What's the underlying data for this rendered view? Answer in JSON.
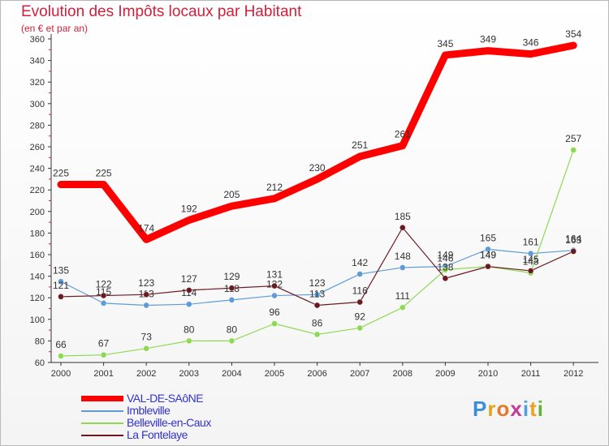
{
  "header": {
    "title": "Evolution des Impôts locaux par Habitant",
    "subtitle": "(en € et par an)"
  },
  "brand": {
    "text": "Proxiti",
    "colors": [
      "#3a8fd8",
      "#e0a51a",
      "#e8762b",
      "#c33a9a",
      "#4aa3df",
      "#f0a020",
      "#62b33a"
    ]
  },
  "chart_data": {
    "type": "line",
    "x": [
      2000,
      2001,
      2002,
      2003,
      2004,
      2005,
      2006,
      2007,
      2008,
      2009,
      2010,
      2011,
      2012
    ],
    "ylim": [
      60,
      360
    ],
    "yticks": [
      60,
      80,
      100,
      120,
      140,
      160,
      180,
      200,
      220,
      240,
      260,
      280,
      300,
      320,
      340,
      360
    ],
    "grid": false,
    "legend_position": "bottom-left",
    "series": [
      {
        "name": "VAL-DE-SAôNE",
        "color": "#ff0000",
        "values": [
          225,
          225,
          174,
          192,
          205,
          212,
          230,
          251,
          261,
          345,
          349,
          346,
          354
        ]
      },
      {
        "name": "Imbleville",
        "color": "#5f9cd6",
        "values": [
          135,
          115,
          113,
          114,
          118,
          122,
          123,
          142,
          148,
          149,
          165,
          161,
          164
        ]
      },
      {
        "name": "Belleville-en-Caux",
        "color": "#8fd952",
        "values": [
          66,
          67,
          73,
          80,
          80,
          96,
          86,
          92,
          111,
          146,
          149,
          143,
          257
        ]
      },
      {
        "name": "La Fontelaye",
        "color": "#6b1a22",
        "values": [
          121,
          122,
          123,
          127,
          129,
          131,
          113,
          116,
          185,
          138,
          149,
          145,
          163
        ]
      }
    ]
  }
}
